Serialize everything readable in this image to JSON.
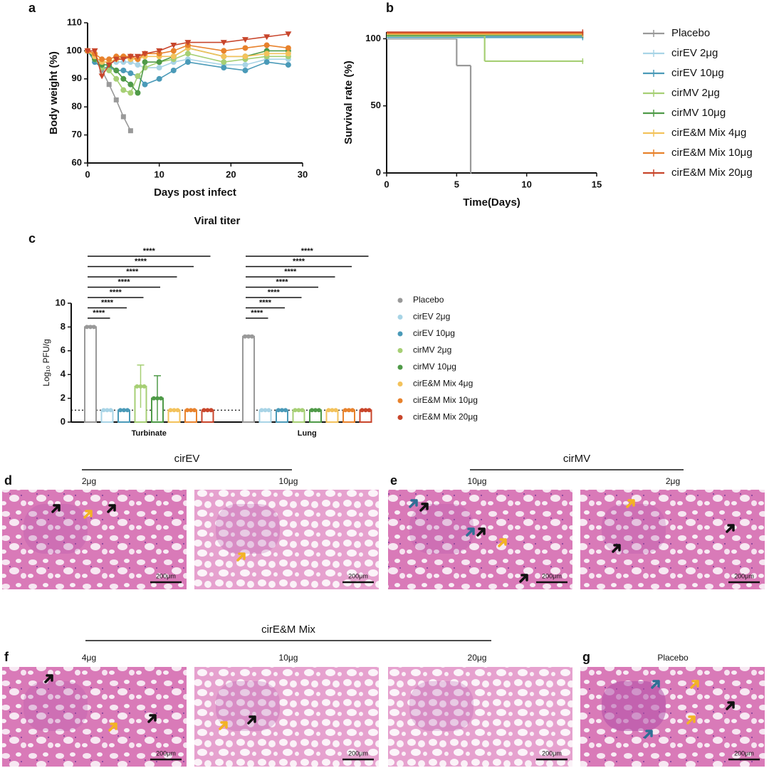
{
  "chart_data": [
    {
      "type": "line",
      "xlabel": "Days post infect",
      "ylabel": "Body weight (%)",
      "x": [
        0,
        1,
        2,
        3,
        4,
        5,
        6,
        7,
        8,
        10,
        12,
        14,
        19,
        22,
        25,
        28
      ],
      "xlim": [
        0,
        30
      ],
      "xticks": [
        0,
        10,
        20,
        30
      ],
      "ylim": [
        60,
        110
      ],
      "yticks": [
        60,
        70,
        80,
        90,
        100,
        110
      ],
      "series": [
        {
          "color": "#999999",
          "marker": "square",
          "values": [
            100,
            98,
            93,
            88,
            82.5,
            76.5,
            71.5,
            null,
            null,
            null,
            null,
            null,
            null,
            null,
            null,
            null
          ]
        },
        {
          "color": "#a8d4e6",
          "marker": "circle",
          "values": [
            100,
            97,
            96,
            96,
            96,
            96,
            96,
            95,
            94,
            94,
            96,
            97,
            95,
            95,
            97,
            97
          ]
        },
        {
          "color": "#4a9ab8",
          "marker": "circle",
          "values": [
            100,
            96,
            94,
            94,
            93,
            93,
            92,
            91,
            88,
            90,
            93,
            96,
            94,
            93,
            96,
            95
          ]
        },
        {
          "color": "#a6cf74",
          "marker": "circle",
          "values": [
            100,
            97,
            94,
            93,
            90,
            86,
            85,
            91,
            94,
            96,
            97,
            99,
            96,
            97,
            98,
            98
          ]
        },
        {
          "color": "#4f9a48",
          "marker": "circle",
          "values": [
            100,
            97,
            95,
            95,
            93,
            90,
            88,
            85,
            96,
            96,
            98,
            101,
            98,
            98,
            100,
            100
          ]
        },
        {
          "color": "#f3c25b",
          "marker": "circle",
          "values": [
            100,
            98,
            96,
            96,
            97,
            98,
            97,
            97,
            98,
            98,
            98,
            101,
            98,
            98,
            99,
            99
          ]
        },
        {
          "color": "#e8822c",
          "marker": "circle",
          "values": [
            100,
            99,
            97,
            97,
            98,
            98,
            98,
            97,
            99,
            99,
            100,
            102,
            100,
            101,
            102,
            101
          ]
        },
        {
          "color": "#c8452b",
          "marker": "triangle-down",
          "values": [
            100,
            100,
            91,
            95,
            97,
            97,
            98,
            98,
            99,
            100,
            102,
            103,
            103,
            104,
            105,
            106
          ]
        }
      ]
    },
    {
      "type": "step",
      "xlabel": "Time(Days)",
      "ylabel": "Survival rate (%)",
      "xlim": [
        0,
        15
      ],
      "xticks": [
        0,
        5,
        10,
        15
      ],
      "ylim": [
        0,
        105
      ],
      "yticks": [
        0,
        50,
        100
      ],
      "legend": "right",
      "series": [
        {
          "name": "Placebo",
          "color": "#999999",
          "x": [
            0,
            5,
            6
          ],
          "values": [
            100,
            80,
            0
          ]
        },
        {
          "name": "cirEV 2μg",
          "color": "#a8d4e6",
          "x": [
            0,
            14
          ],
          "values": [
            100,
            100
          ]
        },
        {
          "name": "cirEV 10μg",
          "color": "#4a9ab8",
          "x": [
            0,
            14
          ],
          "values": [
            100,
            100
          ]
        },
        {
          "name": "cirMV 2μg",
          "color": "#a6cf74",
          "x": [
            0,
            7,
            14
          ],
          "values": [
            100,
            83.3,
            83.3
          ]
        },
        {
          "name": "cirMV 10μg",
          "color": "#4f9a48",
          "x": [
            0,
            14
          ],
          "values": [
            100,
            100
          ]
        },
        {
          "name": "cirE&M Mix 4μg",
          "color": "#f3c25b",
          "x": [
            0,
            14
          ],
          "values": [
            100,
            100
          ]
        },
        {
          "name": "cirE&M Mix 10μg",
          "color": "#e8822c",
          "x": [
            0,
            14
          ],
          "values": [
            100,
            100
          ]
        },
        {
          "name": "cirE&M Mix 20μg",
          "color": "#c8452b",
          "x": [
            0,
            14
          ],
          "values": [
            100,
            100
          ]
        }
      ]
    },
    {
      "type": "bar",
      "title": "Viral titer",
      "ylabel": "Log₁₀ PFU/g",
      "categories": [
        "Turbinate",
        "Lung"
      ],
      "ylim": [
        0,
        10
      ],
      "yticks": [
        0,
        2,
        4,
        6,
        8,
        10
      ],
      "detection_limit": 1,
      "significance_label": "****",
      "legend": "right",
      "series": [
        {
          "name": "Placebo",
          "color": "#999999",
          "values": [
            8.0,
            7.2
          ],
          "errors": [
            0.1,
            0.1
          ]
        },
        {
          "name": "cirEV 2μg",
          "color": "#a8d4e6",
          "values": [
            1,
            1
          ],
          "errors": [
            0,
            0
          ]
        },
        {
          "name": "cirEV 10μg",
          "color": "#4a9ab8",
          "values": [
            1,
            1
          ],
          "errors": [
            0,
            0
          ]
        },
        {
          "name": "cirMV 2μg",
          "color": "#a6cf74",
          "values": [
            3.0,
            1
          ],
          "errors": [
            1.8,
            0
          ]
        },
        {
          "name": "cirMV 10μg",
          "color": "#4f9a48",
          "values": [
            2.0,
            1
          ],
          "errors": [
            1.9,
            0
          ]
        },
        {
          "name": "cirE&M Mix 4μg",
          "color": "#f3c25b",
          "values": [
            1,
            1
          ],
          "errors": [
            0,
            0
          ]
        },
        {
          "name": "cirE&M Mix 10μg",
          "color": "#e8822c",
          "values": [
            1,
            1
          ],
          "errors": [
            0,
            0
          ]
        },
        {
          "name": "cirE&M Mix 20μg",
          "color": "#c8452b",
          "values": [
            1,
            1
          ],
          "errors": [
            0,
            0
          ]
        }
      ]
    }
  ],
  "letters": [
    "a",
    "b",
    "c",
    "d",
    "e",
    "f",
    "g"
  ],
  "histology": {
    "groups": [
      "cirEV",
      "cirMV",
      "cirE&M Mix"
    ],
    "scale_bar": "200μm",
    "panels": [
      "2μg",
      "10μg",
      "10μg",
      "2μg",
      "4μg",
      "10μg",
      "20μg",
      "Placebo"
    ]
  }
}
